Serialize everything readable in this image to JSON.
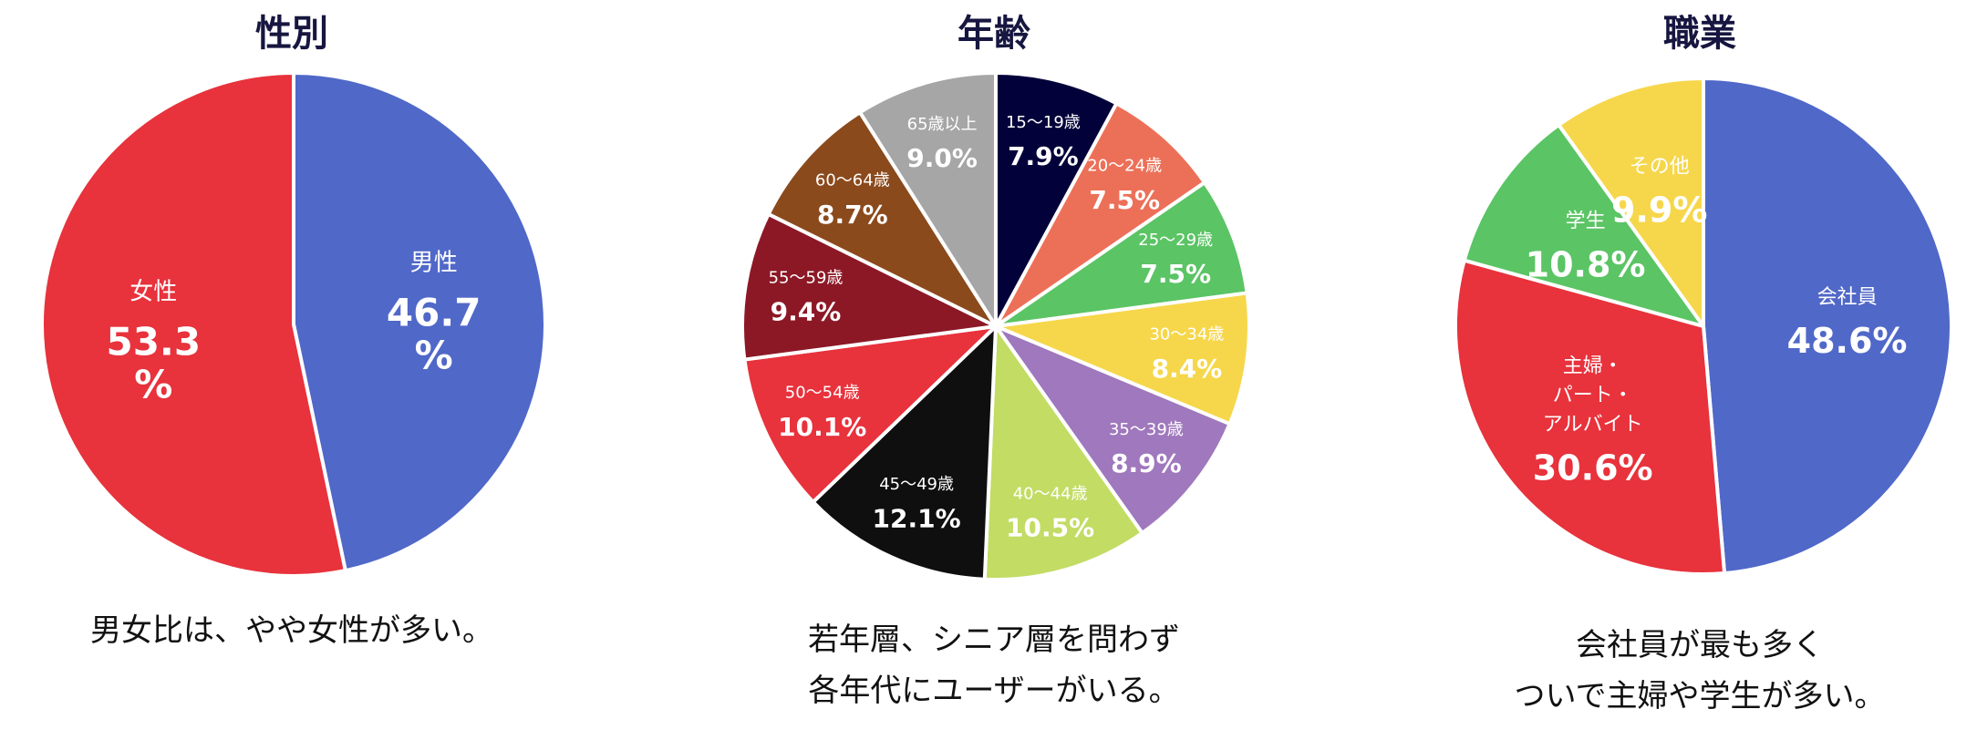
{
  "chart_data": [
    {
      "type": "pie",
      "title": "性別",
      "slices": [
        {
          "label": "男性",
          "value": 46.7,
          "value_label": "46.7",
          "unit": "%",
          "color": "#5068c8"
        },
        {
          "label": "女性",
          "value": 53.3,
          "value_label": "53.3",
          "unit": "%",
          "color": "#e8323c"
        }
      ],
      "caption": [
        "男女比は、やや女性が多い。"
      ]
    },
    {
      "type": "pie",
      "title": "年齢",
      "slices": [
        {
          "label": "15～19歳",
          "value": 7.9,
          "value_label": "7.9%",
          "color": "#02013a"
        },
        {
          "label": "20～24歳",
          "value": 7.5,
          "value_label": "7.5%",
          "color": "#ec7058"
        },
        {
          "label": "25～29歳",
          "value": 7.5,
          "value_label": "7.5%",
          "color": "#5bc465"
        },
        {
          "label": "30～34歳",
          "value": 8.4,
          "value_label": "8.4%",
          "color": "#f6d74b"
        },
        {
          "label": "35～39歳",
          "value": 8.9,
          "value_label": "8.9%",
          "color": "#9f78bd"
        },
        {
          "label": "40～44歳",
          "value": 10.5,
          "value_label": "10.5%",
          "color": "#c2dc64"
        },
        {
          "label": "45～49歳",
          "value": 12.1,
          "value_label": "12.1%",
          "color": "#0f0f0f"
        },
        {
          "label": "50～54歳",
          "value": 10.1,
          "value_label": "10.1%",
          "color": "#e8323c"
        },
        {
          "label": "55～59歳",
          "value": 9.4,
          "value_label": "9.4%",
          "color": "#8c1826"
        },
        {
          "label": "60～64歳",
          "value": 8.7,
          "value_label": "8.7%",
          "color": "#8b4a1c"
        },
        {
          "label": "65歳以上",
          "value": 9.0,
          "value_label": "9.0%",
          "color": "#a6a6a6"
        }
      ],
      "caption": [
        "若年層、シニア層を問わず",
        "各年代にユーザーがいる。"
      ]
    },
    {
      "type": "pie",
      "title": "職業",
      "slices": [
        {
          "label": "会社員",
          "value": 48.6,
          "value_label": "48.6%",
          "color": "#5068c8"
        },
        {
          "label": "主婦・\nパート・\nアルバイト",
          "value": 30.6,
          "value_label": "30.6%",
          "color": "#e8323c"
        },
        {
          "label": "学生",
          "value": 10.8,
          "value_label": "10.8%",
          "color": "#5bc465"
        },
        {
          "label": "その他",
          "value": 9.9,
          "value_label": "9.9%",
          "color": "#f6d74b"
        }
      ],
      "caption": [
        "会社員が最も多く",
        "ついで主婦や学生が多い。"
      ]
    }
  ]
}
